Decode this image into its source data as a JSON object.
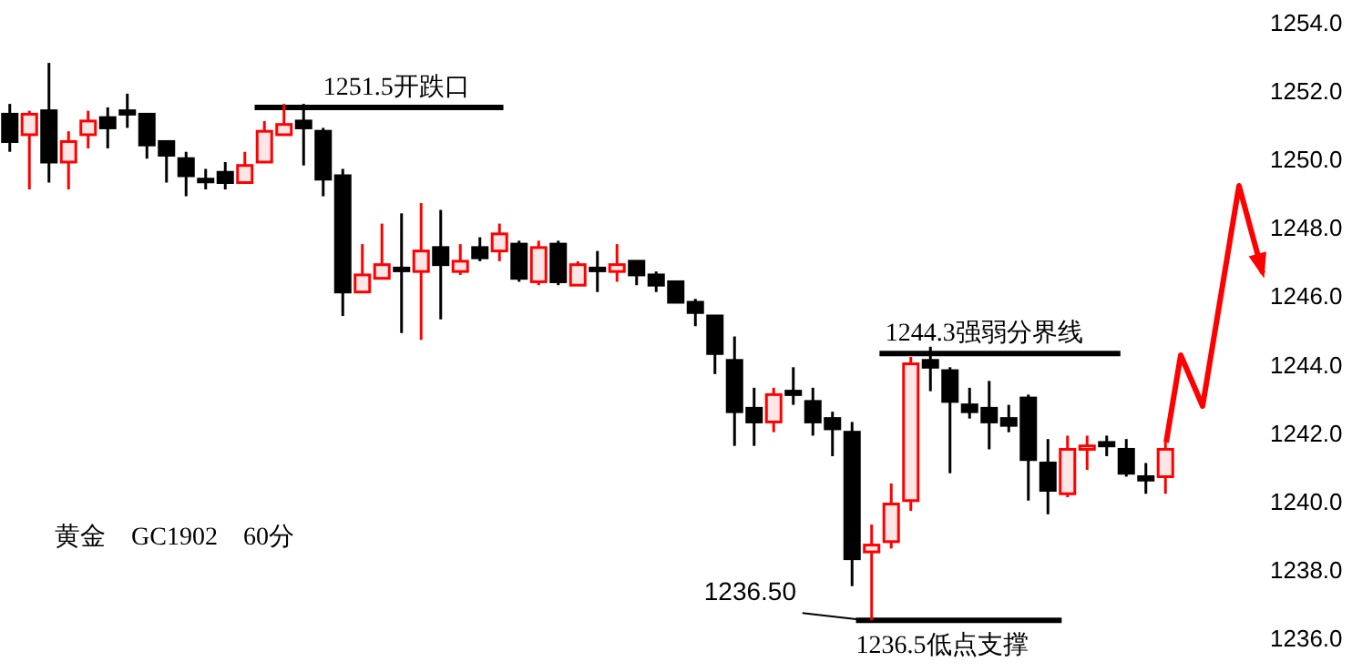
{
  "chart_data": [
    {
      "type": "candlestick",
      "categories": [
        null,
        null,
        null,
        null,
        null,
        null,
        null,
        null,
        null,
        null,
        null,
        null,
        null,
        null,
        null,
        null,
        null,
        null,
        null,
        null,
        null,
        null,
        null,
        null,
        null,
        null,
        null,
        null,
        null,
        null,
        null,
        null,
        null,
        null,
        null,
        null,
        null,
        null,
        null,
        null,
        null,
        null,
        null,
        null,
        null,
        null,
        null,
        null,
        null,
        null,
        null,
        null,
        null,
        null,
        null,
        null,
        null,
        null,
        null,
        null
      ],
      "ohlc": [
        [
          1251.3,
          1251.6,
          1250.2,
          1250.5
        ],
        [
          1250.7,
          1251.4,
          1249.1,
          1251.3
        ],
        [
          1251.4,
          1252.8,
          1249.3,
          1249.9
        ],
        [
          1249.9,
          1250.8,
          1249.1,
          1250.5
        ],
        [
          1250.7,
          1251.4,
          1250.3,
          1251.1
        ],
        [
          1251.2,
          1251.5,
          1250.3,
          1250.9
        ],
        [
          1251.4,
          1251.9,
          1250.9,
          1251.3
        ],
        [
          1251.3,
          1251.3,
          1250.0,
          1250.4
        ],
        [
          1250.5,
          1250.5,
          1249.3,
          1250.1
        ],
        [
          1250.0,
          1250.2,
          1248.9,
          1249.5
        ],
        [
          1249.4,
          1249.7,
          1249.1,
          1249.4
        ],
        [
          1249.6,
          1249.9,
          1249.1,
          1249.3
        ],
        [
          1249.3,
          1250.2,
          1249.3,
          1249.8
        ],
        [
          1249.9,
          1251.1,
          1249.9,
          1250.8
        ],
        [
          1250.7,
          1251.6,
          1250.7,
          1251.0
        ],
        [
          1251.1,
          1251.6,
          1249.8,
          1250.9
        ],
        [
          1250.8,
          1250.9,
          1248.9,
          1249.4
        ],
        [
          1249.5,
          1249.7,
          1245.4,
          1246.1
        ],
        [
          1246.1,
          1247.5,
          1246.1,
          1246.6
        ],
        [
          1246.5,
          1248.1,
          1246.5,
          1246.9
        ],
        [
          1246.8,
          1248.4,
          1244.9,
          1246.8
        ],
        [
          1246.7,
          1248.7,
          1244.7,
          1247.3
        ],
        [
          1247.4,
          1248.5,
          1245.3,
          1246.9
        ],
        [
          1246.7,
          1247.5,
          1246.6,
          1247.0
        ],
        [
          1247.4,
          1247.7,
          1247.0,
          1247.1
        ],
        [
          1247.3,
          1248.1,
          1247.0,
          1247.8
        ],
        [
          1247.5,
          1247.6,
          1246.4,
          1246.5
        ],
        [
          1246.4,
          1247.6,
          1246.3,
          1247.4
        ],
        [
          1247.5,
          1247.6,
          1246.3,
          1246.4
        ],
        [
          1246.3,
          1247.0,
          1246.3,
          1246.9
        ],
        [
          1246.8,
          1247.3,
          1246.1,
          1246.8
        ],
        [
          1246.7,
          1247.5,
          1246.4,
          1246.9
        ],
        [
          1247.0,
          1247.0,
          1246.3,
          1246.6
        ],
        [
          1246.6,
          1246.7,
          1246.1,
          1246.3
        ],
        [
          1246.4,
          1246.4,
          1245.8,
          1245.8
        ],
        [
          1245.8,
          1245.9,
          1245.1,
          1245.5
        ],
        [
          1245.4,
          1245.4,
          1243.7,
          1244.3
        ],
        [
          1244.1,
          1244.8,
          1241.6,
          1242.6
        ],
        [
          1242.7,
          1243.3,
          1241.6,
          1242.3
        ],
        [
          1242.3,
          1243.3,
          1242.0,
          1243.1
        ],
        [
          1243.2,
          1243.9,
          1242.8,
          1243.1
        ],
        [
          1242.9,
          1243.3,
          1241.9,
          1242.3
        ],
        [
          1242.4,
          1242.6,
          1241.3,
          1242.1
        ],
        [
          1242.0,
          1242.3,
          1237.5,
          1238.3
        ],
        [
          1238.5,
          1239.3,
          1236.5,
          1238.7
        ],
        [
          1238.8,
          1240.5,
          1238.6,
          1239.9
        ],
        [
          1240.0,
          1244.2,
          1239.7,
          1244.0
        ],
        [
          1244.1,
          1244.5,
          1243.2,
          1243.9
        ],
        [
          1243.8,
          1243.9,
          1240.8,
          1242.9
        ],
        [
          1242.8,
          1243.3,
          1242.4,
          1242.6
        ],
        [
          1242.7,
          1243.5,
          1241.5,
          1242.3
        ],
        [
          1242.4,
          1242.8,
          1242.0,
          1242.2
        ],
        [
          1243.0,
          1243.1,
          1240.0,
          1241.2
        ],
        [
          1241.1,
          1241.8,
          1239.6,
          1240.3
        ],
        [
          1240.2,
          1241.9,
          1240.1,
          1241.5
        ],
        [
          1241.5,
          1241.9,
          1240.9,
          1241.6
        ],
        [
          1241.7,
          1241.9,
          1241.3,
          1241.6
        ],
        [
          1241.5,
          1241.8,
          1240.7,
          1240.8
        ],
        [
          1240.7,
          1241.1,
          1240.2,
          1240.6
        ],
        [
          1240.7,
          1241.7,
          1240.2,
          1241.5
        ]
      ],
      "ylim": [
        1236,
        1254
      ],
      "yticks": [
        {
          "value": 1236,
          "label": "1236.0"
        },
        {
          "value": 1238,
          "label": "1238.0"
        },
        {
          "value": 1240,
          "label": "1240.0"
        },
        {
          "value": 1242,
          "label": "1242.0"
        },
        {
          "value": 1244,
          "label": "1244.0"
        },
        {
          "value": 1246,
          "label": "1246.0"
        },
        {
          "value": 1248,
          "label": "1248.0"
        },
        {
          "value": 1250,
          "label": "1250.0"
        },
        {
          "value": 1252,
          "label": "1252.0"
        },
        {
          "value": 1254,
          "label": "1254.0"
        }
      ],
      "ref_lines": [
        {
          "axis": "y",
          "value": 1251.5,
          "label": "1251.5开跌口",
          "color": "#000000"
        },
        {
          "axis": "y",
          "value": 1244.3,
          "label": "1244.3强弱分界线",
          "color": "#000000"
        },
        {
          "axis": "y",
          "value": 1236.5,
          "label": "1236.5低点支撑",
          "color": "#000000"
        }
      ],
      "annotations": [
        "黄金　GC1902　60分",
        "1236.50"
      ]
    }
  ]
}
